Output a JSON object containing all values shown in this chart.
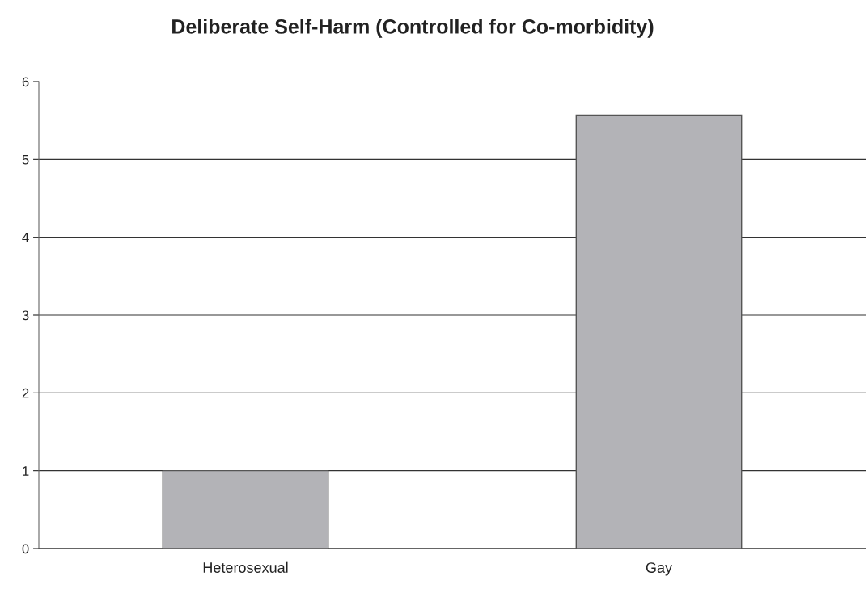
{
  "chart_data": {
    "type": "bar",
    "title": "Deliberate Self-Harm (Controlled for Co-morbidity)",
    "categories": [
      "Heterosexual",
      "Gay"
    ],
    "values": [
      1.0,
      5.57
    ],
    "color": "#b3b3b7",
    "ylim": [
      0,
      6
    ],
    "yticks": [
      0,
      1,
      2,
      3,
      4,
      5,
      6
    ],
    "grid": "y",
    "legend": false
  }
}
